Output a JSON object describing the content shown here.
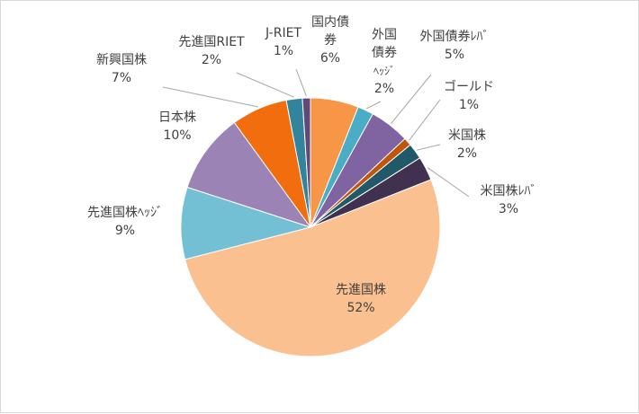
{
  "chart_data": {
    "type": "pie",
    "title": "",
    "slices": [
      {
        "name": "国内債券",
        "lines": [
          "国内債",
          "券"
        ],
        "value": 6,
        "label": "6%",
        "color": "#f79646"
      },
      {
        "name": "外国債券ヘッジ",
        "lines": [
          "外国",
          "債券",
          "ﾍｯｼﾞ"
        ],
        "value": 2,
        "label": "2%",
        "color": "#4bacc6"
      },
      {
        "name": "外国債券レバ",
        "lines": [
          "外国債券ﾚﾊﾞ"
        ],
        "value": 5,
        "label": "5%",
        "color": "#8064a2"
      },
      {
        "name": "ゴールド",
        "lines": [
          "ゴールド"
        ],
        "value": 1,
        "label": "1%",
        "color": "#c0560b"
      },
      {
        "name": "米国株",
        "lines": [
          "米国株"
        ],
        "value": 2,
        "label": "2%",
        "color": "#215968"
      },
      {
        "name": "米国株レバ",
        "lines": [
          "米国株ﾚﾊﾞ"
        ],
        "value": 3,
        "label": "3%",
        "color": "#403151"
      },
      {
        "name": "先進国株",
        "lines": [
          "先進国株"
        ],
        "value": 52,
        "label": "52%",
        "color": "#fac090"
      },
      {
        "name": "先進国株ヘッジ",
        "lines": [
          "先進国株ﾍｯｼﾞ"
        ],
        "value": 9,
        "label": "9%",
        "color": "#73bfd3"
      },
      {
        "name": "日本株",
        "lines": [
          "日本株"
        ],
        "value": 10,
        "label": "10%",
        "color": "#9b83b5"
      },
      {
        "name": "新興国株",
        "lines": [
          "新興国株"
        ],
        "value": 7,
        "label": "7%",
        "color": "#f26d0d"
      },
      {
        "name": "先進国RIET",
        "lines": [
          "先進国RIET"
        ],
        "value": 2,
        "label": "2%",
        "color": "#31849b"
      },
      {
        "name": "J-RIET",
        "lines": [
          "J-RIET"
        ],
        "value": 1,
        "label": "1%",
        "color": "#60497a"
      }
    ]
  }
}
